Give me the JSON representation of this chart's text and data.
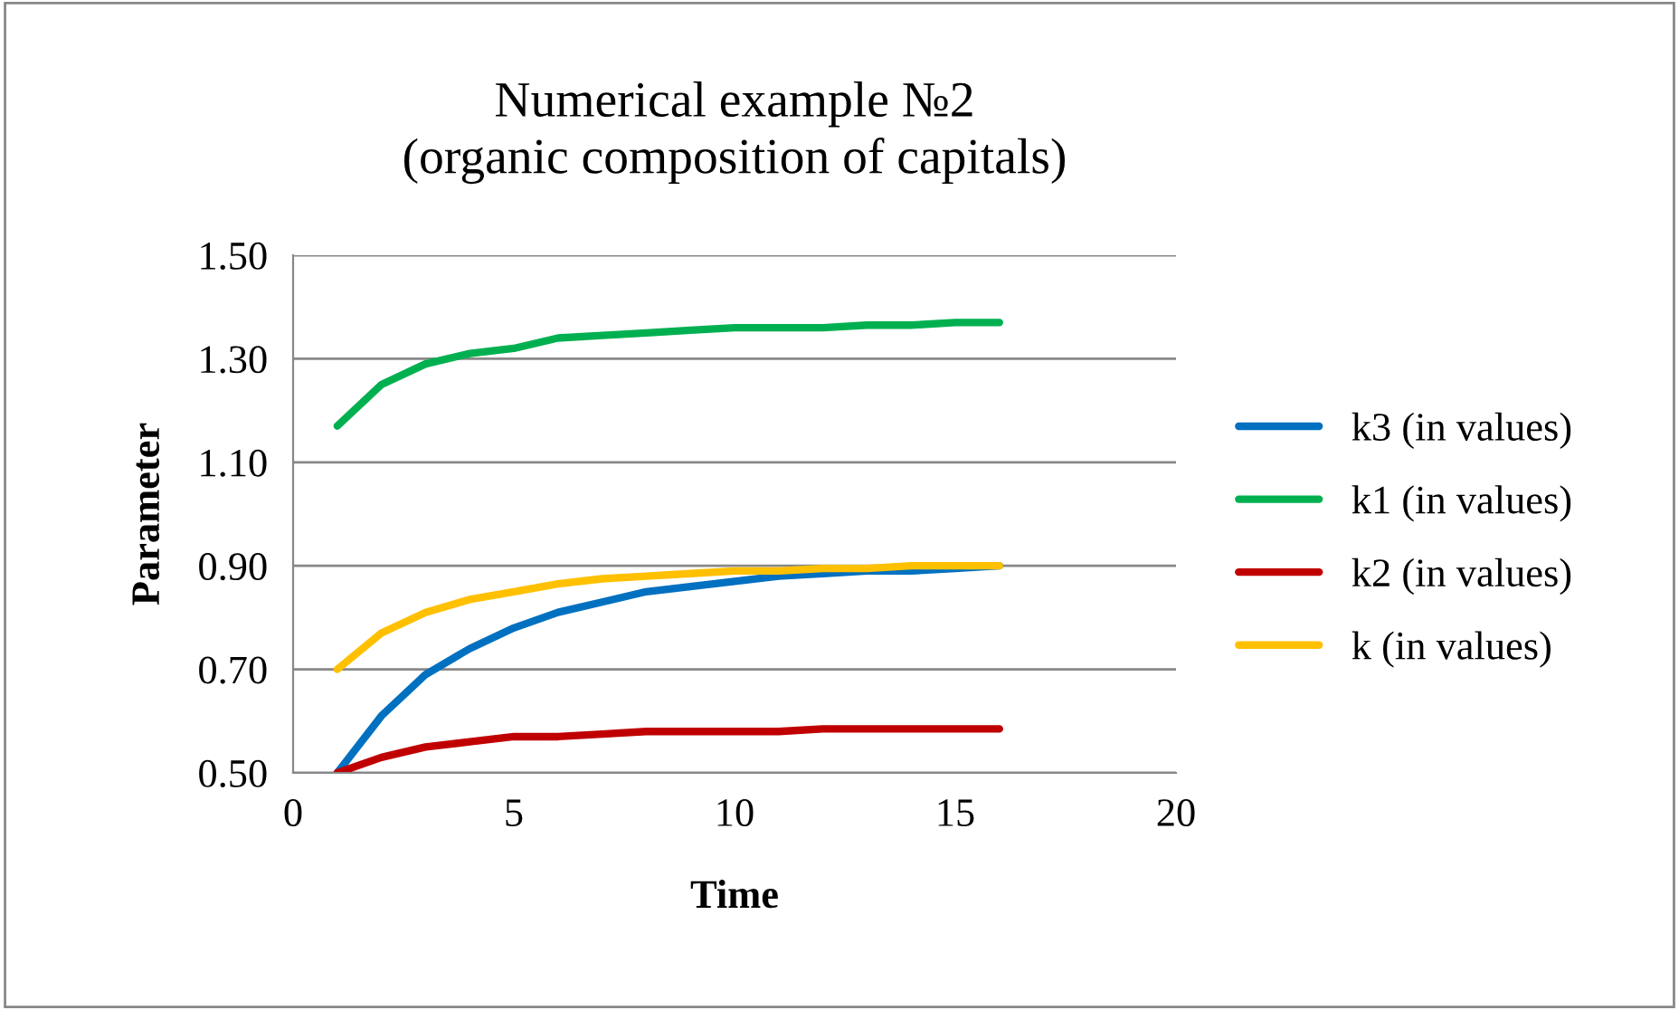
{
  "chart_data": {
    "type": "line",
    "title": "Numerical example №2\n(organic composition of capitals)",
    "xlabel": "Time",
    "ylabel": "Parameter",
    "x": [
      1,
      2,
      3,
      4,
      5,
      6,
      7,
      8,
      9,
      10,
      11,
      12,
      13,
      14,
      15,
      16
    ],
    "series": [
      {
        "name": "k3 (in values)",
        "color": "#0070c0",
        "values": [
          0.5,
          0.61,
          0.69,
          0.74,
          0.78,
          0.81,
          0.83,
          0.85,
          0.86,
          0.87,
          0.88,
          0.885,
          0.89,
          0.89,
          0.895,
          0.9
        ]
      },
      {
        "name": "k1 (in values)",
        "color": "#00b050",
        "values": [
          1.17,
          1.25,
          1.29,
          1.31,
          1.32,
          1.34,
          1.345,
          1.35,
          1.355,
          1.36,
          1.36,
          1.36,
          1.365,
          1.365,
          1.37,
          1.37
        ]
      },
      {
        "name": "k2 (in values)",
        "color": "#c00000",
        "values": [
          0.5,
          0.53,
          0.55,
          0.56,
          0.57,
          0.57,
          0.575,
          0.58,
          0.58,
          0.58,
          0.58,
          0.585,
          0.585,
          0.585,
          0.585,
          0.585
        ]
      },
      {
        "name": "k (in values)",
        "color": "#ffc000",
        "values": [
          0.7,
          0.77,
          0.81,
          0.835,
          0.85,
          0.865,
          0.875,
          0.88,
          0.885,
          0.89,
          0.89,
          0.895,
          0.895,
          0.9,
          0.9,
          0.9
        ]
      }
    ],
    "xlim": [
      0,
      20
    ],
    "xticks": [
      0,
      5,
      10,
      15,
      20
    ],
    "ylim": [
      0.5,
      1.5
    ],
    "yticks": [
      {
        "value": 0.5,
        "label": "0.50"
      },
      {
        "value": 0.7,
        "label": "0.70"
      },
      {
        "value": 0.9,
        "label": "0.90"
      },
      {
        "value": 1.1,
        "label": "1.10"
      },
      {
        "value": 1.3,
        "label": "1.30"
      },
      {
        "value": 1.5,
        "label": "1.50"
      }
    ],
    "grid": "y",
    "legend": "right",
    "marker": "none",
    "line_style": "solid"
  }
}
